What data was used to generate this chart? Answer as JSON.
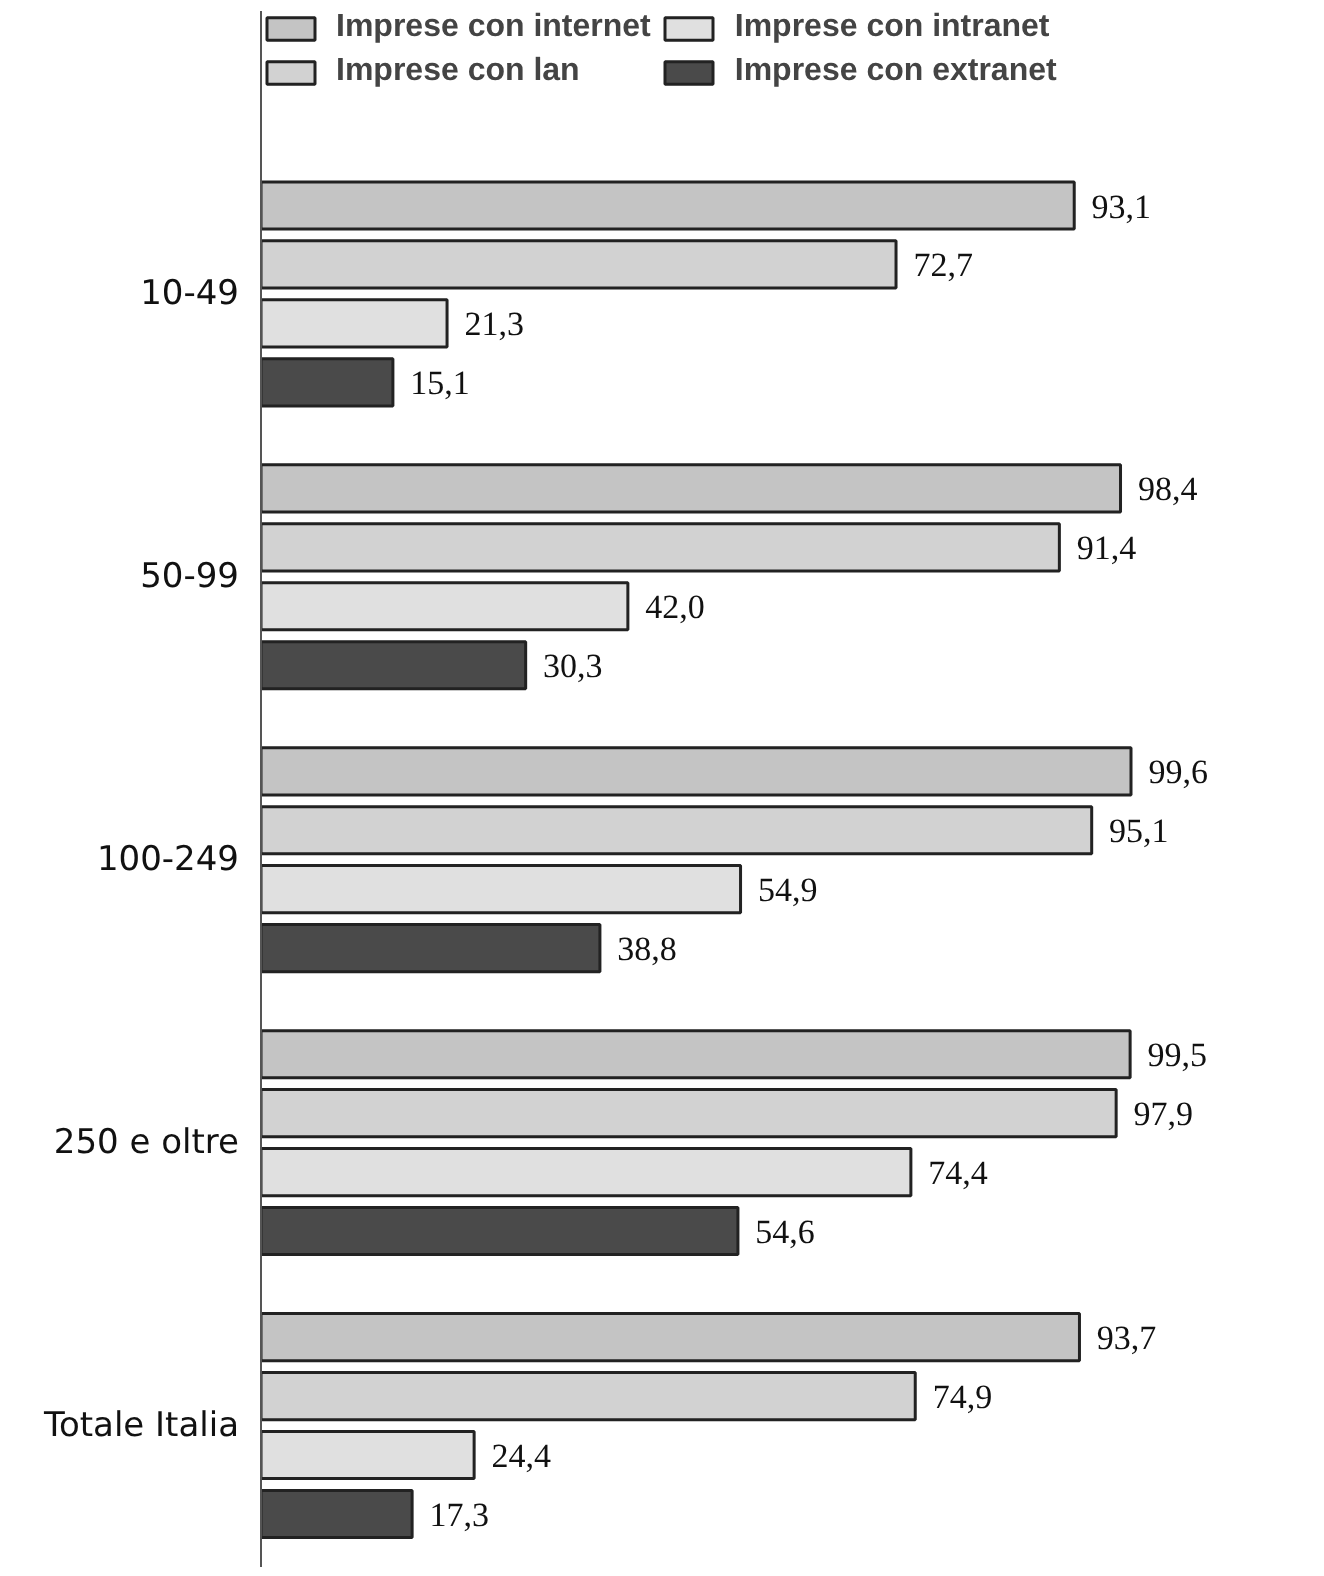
{
  "chart_data": {
    "type": "bar",
    "orientation": "horizontal",
    "categories": [
      "10-49",
      "50-99",
      "100-249",
      "250 e oltre",
      "Totale Italia"
    ],
    "series": [
      {
        "name": "Imprese con internet",
        "color": "#c4c4c4",
        "values": [
          93.1,
          98.4,
          99.6,
          99.5,
          93.7
        ],
        "value_labels": [
          "93,1",
          "98,4",
          "99,6",
          "99,5",
          "93,7"
        ]
      },
      {
        "name": "Imprese con lan",
        "color": "#d2d2d2",
        "values": [
          72.7,
          91.4,
          95.1,
          97.9,
          74.9
        ],
        "value_labels": [
          "72,7",
          "91,4",
          "95,1",
          "97,9",
          "74,9"
        ]
      },
      {
        "name": "Imprese con intranet",
        "color": "#e0e0e0",
        "values": [
          21.3,
          42.0,
          54.9,
          74.4,
          24.4
        ],
        "value_labels": [
          "21,3",
          "42,0",
          "54,9",
          "74,4",
          "24,4"
        ]
      },
      {
        "name": "Imprese con extranet",
        "color": "#4a4a4a",
        "values": [
          15.1,
          30.3,
          38.8,
          54.6,
          17.3
        ],
        "value_labels": [
          "15,1",
          "30,3",
          "38,8",
          "54,6",
          "17,3"
        ]
      }
    ],
    "legend": "top left",
    "grid": false,
    "tick_labels": "y"
  }
}
